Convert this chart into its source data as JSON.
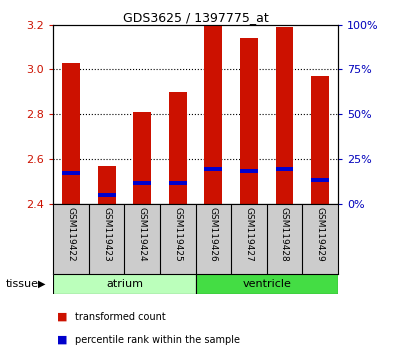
{
  "title": "GDS3625 / 1397775_at",
  "samples": [
    "GSM119422",
    "GSM119423",
    "GSM119424",
    "GSM119425",
    "GSM119426",
    "GSM119427",
    "GSM119428",
    "GSM119429"
  ],
  "red_values": [
    3.03,
    2.57,
    2.81,
    2.9,
    3.2,
    3.14,
    3.19,
    2.97
  ],
  "blue_values": [
    2.535,
    2.44,
    2.49,
    2.49,
    2.555,
    2.545,
    2.555,
    2.505
  ],
  "y_min": 2.4,
  "y_max": 3.2,
  "y_ticks_left": [
    2.4,
    2.6,
    2.8,
    3.0,
    3.2
  ],
  "y_ticks_right": [
    0,
    25,
    50,
    75,
    100
  ],
  "bar_width": 0.5,
  "red_color": "#cc1100",
  "blue_color": "#0000cc",
  "tissue_groups": [
    {
      "label": "atrium",
      "start": 0,
      "end": 4,
      "color": "#bbffbb"
    },
    {
      "label": "ventricle",
      "start": 4,
      "end": 8,
      "color": "#44dd44"
    }
  ],
  "tissue_label": "tissue",
  "legend_items": [
    {
      "color": "#cc1100",
      "label": "transformed count"
    },
    {
      "color": "#0000cc",
      "label": "percentile rank within the sample"
    }
  ],
  "bg_color": "#ffffff",
  "plot_bg_color": "#ffffff",
  "tick_label_color_left": "#cc1100",
  "tick_label_color_right": "#0000bb",
  "grid_color": "#000000",
  "sample_box_color": "#cccccc",
  "blue_bar_height": 0.018
}
